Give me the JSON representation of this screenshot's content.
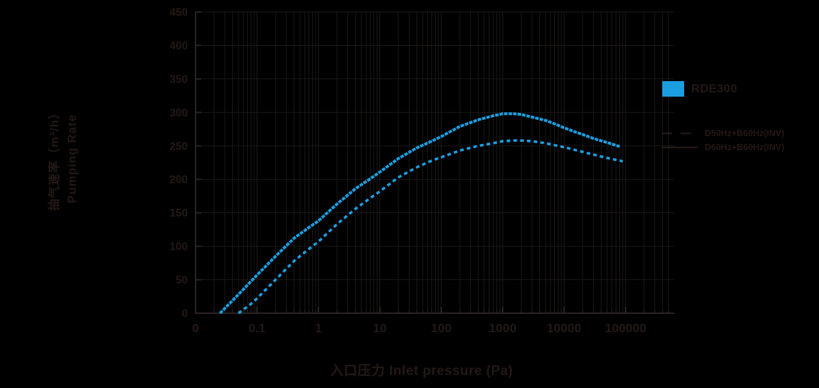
{
  "colors": {
    "background": "#000000",
    "accent_blue": "#1B9EE0",
    "text_dark": "#231815",
    "grid_minor": "#1B1918",
    "grid_major": "#201D1B",
    "axis": "#2A2422"
  },
  "y_axis": {
    "title_cn": "抽气速率（m³/h）",
    "title_en": "Pumping Rate",
    "tick_labels": [
      "0",
      "50",
      "100",
      "150",
      "200",
      "250",
      "300",
      "350",
      "400",
      "450"
    ],
    "tick_values": [
      0,
      50,
      100,
      150,
      200,
      250,
      300,
      350,
      400,
      450
    ]
  },
  "x_axis": {
    "title": "入口压力 Inlet pressure (Pa)",
    "tick_labels": [
      "0",
      "0.1",
      "1",
      "10",
      "100",
      "1000",
      "10000",
      "100000"
    ],
    "tick_values": [
      0.01,
      0.1,
      1,
      10,
      100,
      1000,
      10000,
      100000
    ]
  },
  "legend": {
    "model_label": "RDE300"
  },
  "chart_data": {
    "type": "line",
    "title": "",
    "xlabel": "入口压力 Inlet pressure (Pa)",
    "ylabel": "抽气速率（m³/h）Pumping Rate",
    "x_scale": "log",
    "xlim": [
      0.01,
      600000
    ],
    "ylim": [
      0,
      450
    ],
    "grid": true,
    "legend_position": "right",
    "series": [
      {
        "name": "D50Hz+B60Hz(INV)",
        "style": "dashed",
        "color": "#1B9EE0",
        "points": [
          [
            0.05,
            0
          ],
          [
            0.08,
            14
          ],
          [
            0.1,
            22
          ],
          [
            0.2,
            50
          ],
          [
            0.4,
            78
          ],
          [
            0.7,
            96
          ],
          [
            1,
            107
          ],
          [
            2,
            133
          ],
          [
            4,
            156
          ],
          [
            7,
            172
          ],
          [
            10,
            182
          ],
          [
            20,
            203
          ],
          [
            40,
            218
          ],
          [
            70,
            228
          ],
          [
            100,
            233
          ],
          [
            200,
            243
          ],
          [
            400,
            250
          ],
          [
            700,
            254
          ],
          [
            1000,
            257
          ],
          [
            1500,
            258
          ],
          [
            2000,
            258
          ],
          [
            3000,
            257
          ],
          [
            5000,
            254
          ],
          [
            7000,
            251
          ],
          [
            10000,
            248
          ],
          [
            15000,
            244
          ],
          [
            20000,
            241
          ],
          [
            30000,
            237
          ],
          [
            50000,
            232
          ],
          [
            90000,
            227
          ]
        ]
      },
      {
        "name": "D60Hz+B60Hz(INV)",
        "style": "solid",
        "color": "#1B9EE0",
        "points": [
          [
            0.025,
            0
          ],
          [
            0.05,
            28
          ],
          [
            0.1,
            57
          ],
          [
            0.2,
            85
          ],
          [
            0.4,
            112
          ],
          [
            0.7,
            128
          ],
          [
            1,
            138
          ],
          [
            2,
            163
          ],
          [
            4,
            186
          ],
          [
            7,
            201
          ],
          [
            10,
            211
          ],
          [
            20,
            231
          ],
          [
            40,
            247
          ],
          [
            70,
            257
          ],
          [
            100,
            264
          ],
          [
            200,
            279
          ],
          [
            400,
            289
          ],
          [
            700,
            295
          ],
          [
            1000,
            298
          ],
          [
            1500,
            298
          ],
          [
            2000,
            297
          ],
          [
            3000,
            293
          ],
          [
            5000,
            288
          ],
          [
            7000,
            283
          ],
          [
            10000,
            277
          ],
          [
            15000,
            271
          ],
          [
            20000,
            267
          ],
          [
            30000,
            261
          ],
          [
            50000,
            255
          ],
          [
            80000,
            249
          ]
        ]
      }
    ]
  }
}
